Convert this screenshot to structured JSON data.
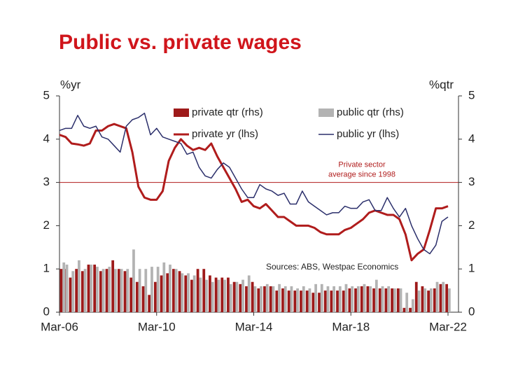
{
  "chart_data": {
    "type": "combo",
    "title": "Public vs. private wages",
    "y_label": "%yr",
    "y2_label": "%qtr",
    "categories": [
      "Mar-06",
      null,
      null,
      null,
      null,
      null,
      null,
      null,
      null,
      null,
      null,
      null,
      null,
      null,
      null,
      null,
      "Mar-10",
      null,
      null,
      null,
      null,
      null,
      null,
      null,
      null,
      null,
      null,
      null,
      null,
      null,
      null,
      null,
      "Mar-14",
      null,
      null,
      null,
      null,
      null,
      null,
      null,
      null,
      null,
      null,
      null,
      null,
      null,
      null,
      null,
      "Mar-18",
      null,
      null,
      null,
      null,
      null,
      null,
      null,
      null,
      null,
      null,
      null,
      null,
      null,
      null,
      null,
      "Mar-22"
    ],
    "ylim": [
      0,
      5
    ],
    "yticks": [
      0,
      1,
      2,
      3,
      4,
      5
    ],
    "y2lim": [
      0,
      5
    ],
    "y2ticks": [
      0,
      1,
      2,
      3,
      4,
      5
    ],
    "series": [
      {
        "name": "private qtr (rhs)",
        "type": "bar",
        "axis": "y2",
        "color": "#9e1a1a",
        "values": [
          1.0,
          1.0,
          0.8,
          1.0,
          0.95,
          1.1,
          1.1,
          0.95,
          1.0,
          1.2,
          1.0,
          0.95,
          0.8,
          0.7,
          0.6,
          0.4,
          0.7,
          0.85,
          0.9,
          1.0,
          0.95,
          0.85,
          0.75,
          1.0,
          1.0,
          0.85,
          0.8,
          0.8,
          0.8,
          0.7,
          0.65,
          0.6,
          0.7,
          0.55,
          0.6,
          0.6,
          0.5,
          0.55,
          0.5,
          0.5,
          0.5,
          0.5,
          0.45,
          0.45,
          0.5,
          0.5,
          0.5,
          0.5,
          0.55,
          0.55,
          0.6,
          0.6,
          0.55,
          0.55,
          0.55,
          0.55,
          0.55,
          0.1,
          0.1,
          0.7,
          0.6,
          0.5,
          0.55,
          0.65,
          0.65
        ]
      },
      {
        "name": "public qtr (rhs)",
        "type": "bar",
        "axis": "y2",
        "color": "#b3b3b3",
        "values": [
          1.15,
          1.1,
          0.95,
          1.2,
          1.0,
          1.1,
          1.05,
          1.0,
          1.05,
          1.0,
          1.0,
          1.0,
          1.45,
          1.0,
          1.0,
          1.05,
          1.05,
          1.15,
          1.1,
          1.0,
          0.9,
          0.9,
          0.85,
          0.8,
          0.75,
          0.7,
          0.75,
          0.75,
          0.65,
          0.7,
          0.75,
          0.85,
          0.6,
          0.6,
          0.65,
          0.6,
          0.65,
          0.6,
          0.6,
          0.55,
          0.6,
          0.55,
          0.65,
          0.65,
          0.6,
          0.6,
          0.6,
          0.65,
          0.6,
          0.6,
          0.65,
          0.6,
          0.75,
          0.6,
          0.6,
          0.55,
          0.55,
          0.45,
          0.3,
          0.5,
          0.55,
          0.55,
          0.7,
          0.7,
          0.55
        ]
      },
      {
        "name": "private yr (lhs)",
        "type": "line",
        "color": "#b01c1c",
        "width": 3,
        "values": [
          4.1,
          4.05,
          3.9,
          3.88,
          3.85,
          3.9,
          4.2,
          4.2,
          4.3,
          4.35,
          4.3,
          4.25,
          3.7,
          2.9,
          2.65,
          2.6,
          2.6,
          2.8,
          3.5,
          3.8,
          4.0,
          3.85,
          3.75,
          3.8,
          3.75,
          3.9,
          3.6,
          3.35,
          3.1,
          2.85,
          2.55,
          2.6,
          2.45,
          2.4,
          2.5,
          2.35,
          2.2,
          2.2,
          2.1,
          2.0,
          2.0,
          2.0,
          1.95,
          1.85,
          1.8,
          1.8,
          1.8,
          1.9,
          1.95,
          2.05,
          2.15,
          2.3,
          2.35,
          2.3,
          2.25,
          2.25,
          2.15,
          1.8,
          1.2,
          1.35,
          1.45,
          1.9,
          2.4,
          2.4,
          2.45
        ]
      },
      {
        "name": "public yr (lhs)",
        "type": "line",
        "color": "#2b2f6b",
        "width": 1.5,
        "values": [
          4.2,
          4.25,
          4.25,
          4.55,
          4.3,
          4.25,
          4.3,
          4.05,
          4.0,
          3.85,
          3.7,
          4.3,
          4.45,
          4.5,
          4.6,
          4.1,
          4.25,
          4.05,
          4.0,
          3.95,
          3.9,
          3.65,
          3.7,
          3.35,
          3.15,
          3.1,
          3.3,
          3.45,
          3.35,
          3.1,
          2.85,
          2.65,
          2.65,
          2.95,
          2.85,
          2.8,
          2.7,
          2.75,
          2.5,
          2.5,
          2.8,
          2.55,
          2.45,
          2.35,
          2.25,
          2.3,
          2.3,
          2.45,
          2.4,
          2.4,
          2.55,
          2.6,
          2.35,
          2.35,
          2.65,
          2.4,
          2.2,
          2.4,
          2.0,
          1.7,
          1.45,
          1.35,
          1.55,
          2.1,
          2.2
        ]
      }
    ],
    "reference_line": {
      "value": 3,
      "color": "#b01c1c",
      "label": [
        "Private sector",
        "average since 1998"
      ]
    },
    "source": "Sources: ABS, Westpac Economics"
  }
}
